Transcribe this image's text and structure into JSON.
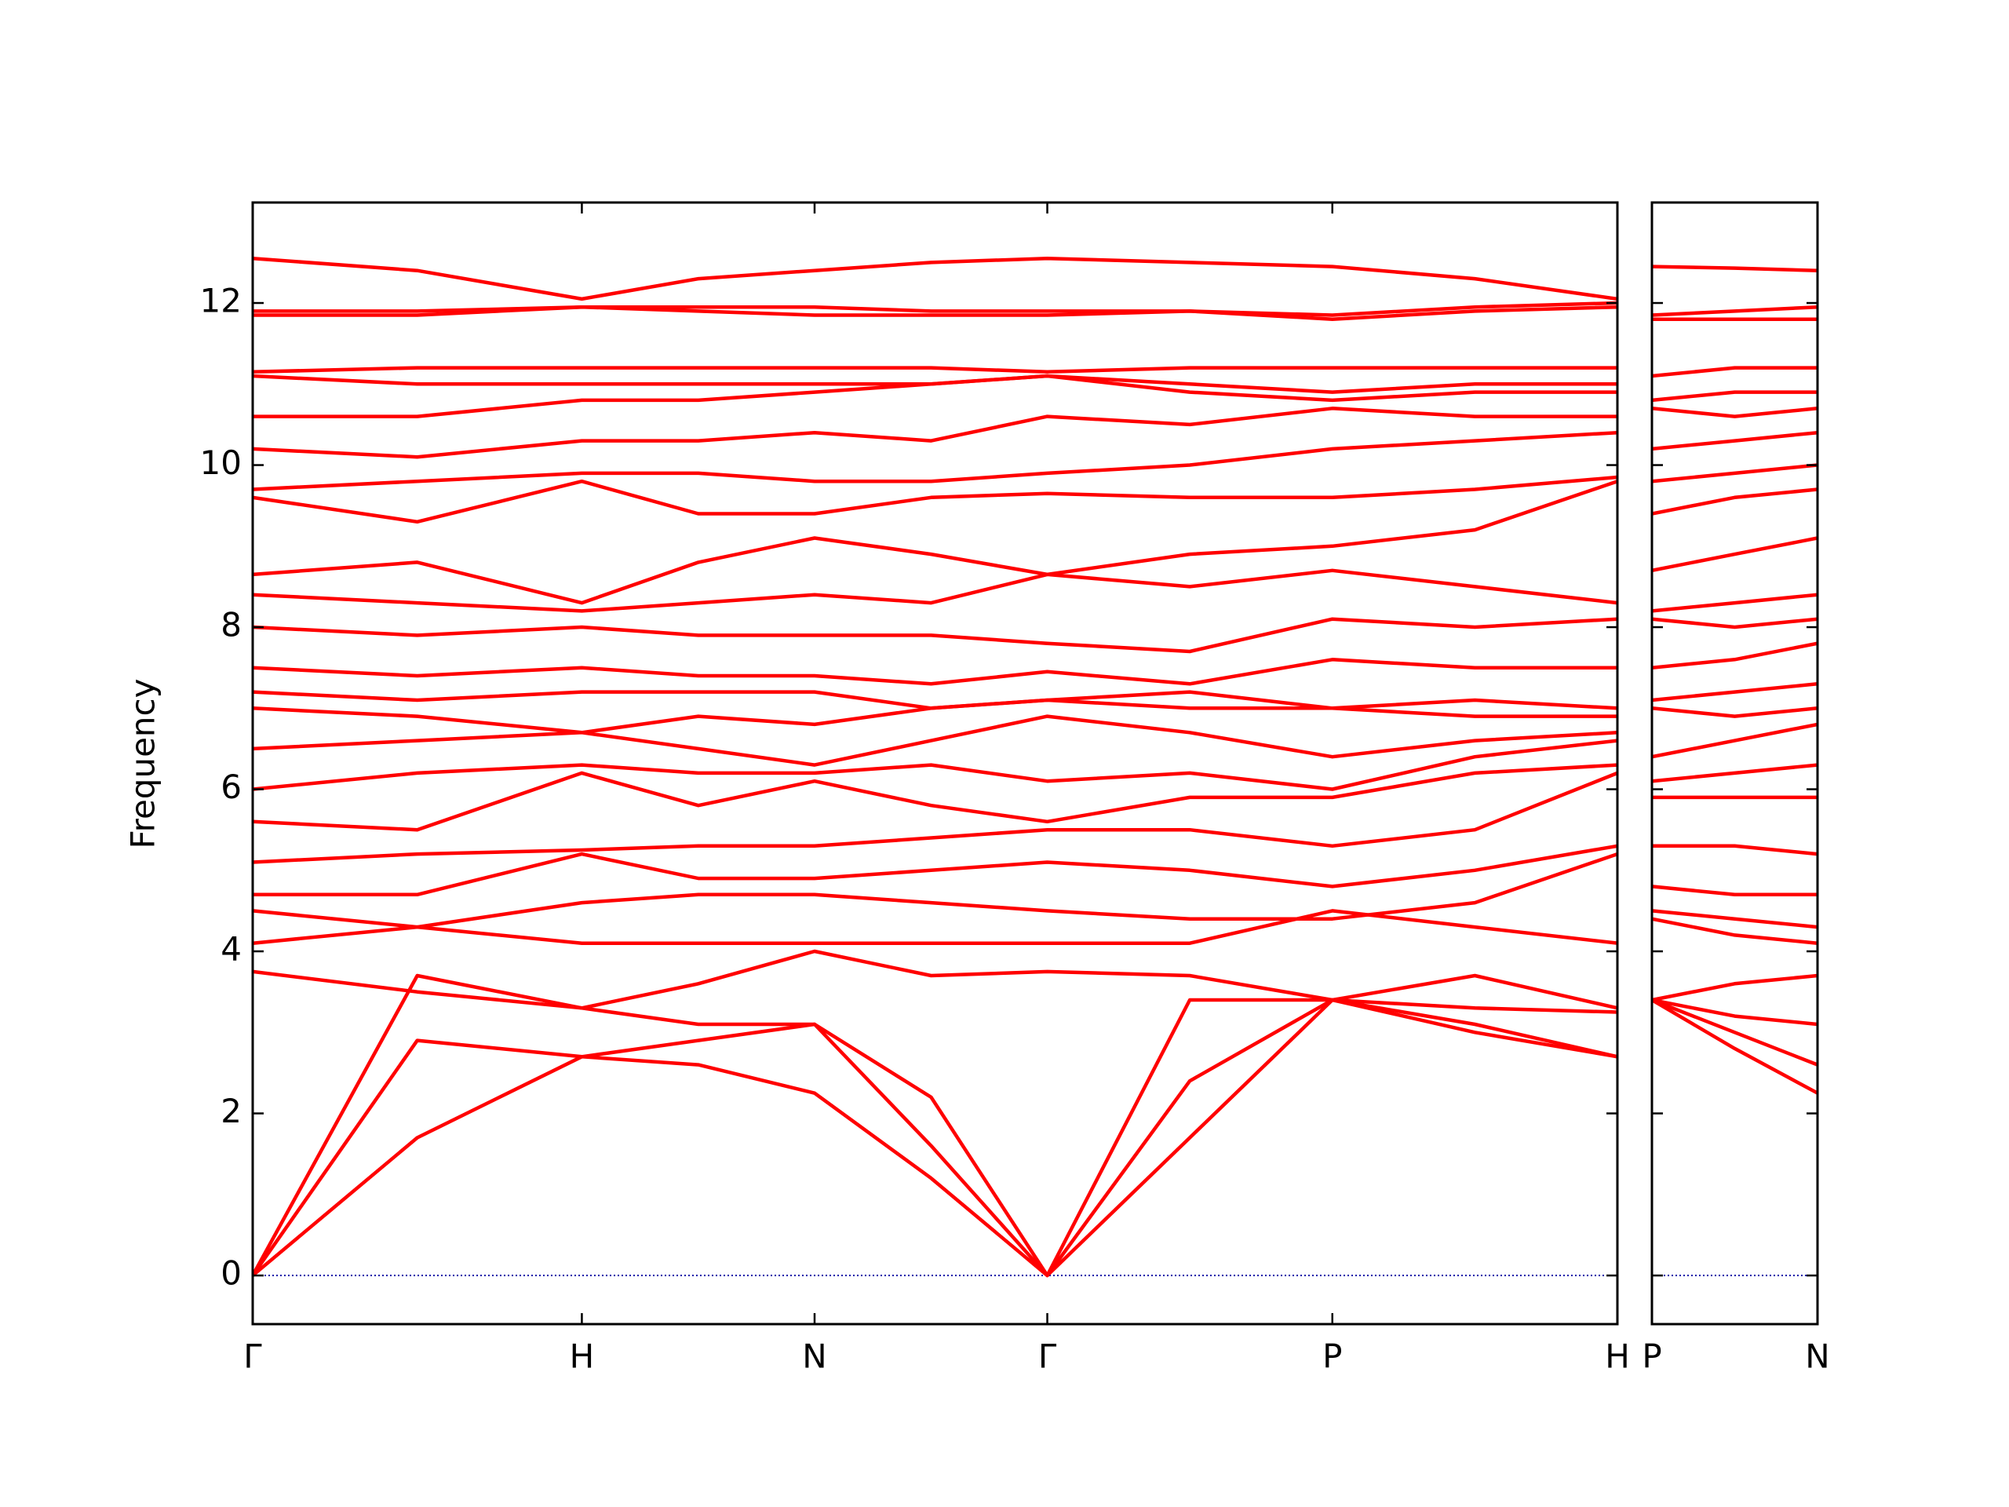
{
  "chart_data": [
    {
      "type": "line",
      "ylabel": "Frequency",
      "color": "#ff0000",
      "zero_line": {
        "y": 0,
        "color": "#0000aa",
        "style": "dotted"
      },
      "xlim": [
        0,
        4.146
      ],
      "ylim": [
        -0.6,
        13.24
      ],
      "xticks": [
        {
          "value": 0,
          "label": "Γ"
        },
        {
          "value": 1,
          "label": "H"
        },
        {
          "value": 1.707,
          "label": "N"
        },
        {
          "value": 2.414,
          "label": "Γ"
        },
        {
          "value": 3.28,
          "label": "P"
        },
        {
          "value": 4.146,
          "label": "H"
        }
      ],
      "yticks": [
        0,
        2,
        4,
        6,
        8,
        10,
        12
      ],
      "x": [
        0,
        0.5,
        1,
        1.354,
        1.707,
        2.061,
        2.414,
        2.847,
        3.28,
        3.713,
        4.146
      ],
      "series": [
        {
          "values": [
            0,
            1.7,
            2.7,
            2.6,
            2.25,
            1.2,
            0,
            1.7,
            3.4,
            3.0,
            2.7
          ]
        },
        {
          "values": [
            0,
            2.9,
            2.7,
            2.9,
            3.1,
            1.6,
            0,
            2.4,
            3.4,
            3.1,
            2.7
          ]
        },
        {
          "values": [
            0,
            3.7,
            3.3,
            3.1,
            3.1,
            2.2,
            0,
            3.4,
            3.4,
            3.7,
            3.3
          ]
        },
        {
          "values": [
            3.75,
            3.5,
            3.3,
            3.6,
            4.0,
            3.7,
            3.75,
            3.7,
            3.4,
            3.3,
            3.25
          ]
        },
        {
          "values": [
            4.1,
            4.3,
            4.1,
            4.1,
            4.1,
            4.1,
            4.1,
            4.1,
            4.5,
            4.3,
            4.1
          ]
        },
        {
          "values": [
            4.5,
            4.3,
            4.6,
            4.7,
            4.7,
            4.6,
            4.5,
            4.4,
            4.4,
            4.6,
            5.2
          ]
        },
        {
          "values": [
            4.7,
            4.7,
            5.2,
            4.9,
            4.9,
            5.0,
            5.1,
            5.0,
            4.8,
            5.0,
            5.3
          ]
        },
        {
          "values": [
            5.1,
            5.2,
            5.25,
            5.3,
            5.3,
            5.4,
            5.5,
            5.5,
            5.3,
            5.5,
            6.2
          ]
        },
        {
          "values": [
            5.6,
            5.5,
            6.2,
            5.8,
            6.1,
            5.8,
            5.6,
            5.9,
            5.9,
            6.2,
            6.3
          ]
        },
        {
          "values": [
            6.0,
            6.2,
            6.3,
            6.2,
            6.2,
            6.3,
            6.1,
            6.2,
            6.0,
            6.4,
            6.6
          ]
        },
        {
          "values": [
            6.5,
            6.6,
            6.7,
            6.5,
            6.3,
            6.6,
            6.9,
            6.7,
            6.4,
            6.6,
            6.7
          ]
        },
        {
          "values": [
            7.0,
            6.9,
            6.7,
            6.9,
            6.8,
            7.0,
            7.1,
            7.0,
            7.0,
            6.9,
            6.9
          ]
        },
        {
          "values": [
            7.2,
            7.1,
            7.2,
            7.2,
            7.2,
            7.0,
            7.1,
            7.2,
            7.0,
            7.1,
            7.0
          ]
        },
        {
          "values": [
            7.5,
            7.4,
            7.5,
            7.4,
            7.4,
            7.3,
            7.45,
            7.3,
            7.6,
            7.5,
            7.5
          ]
        },
        {
          "values": [
            8.0,
            7.9,
            8.0,
            7.9,
            7.9,
            7.9,
            7.8,
            7.7,
            8.1,
            8.0,
            8.1
          ]
        },
        {
          "values": [
            8.4,
            8.3,
            8.2,
            8.3,
            8.4,
            8.3,
            8.65,
            8.5,
            8.7,
            8.5,
            8.3
          ]
        },
        {
          "values": [
            8.65,
            8.8,
            8.3,
            8.8,
            9.1,
            8.9,
            8.65,
            8.9,
            9.0,
            9.2,
            9.8
          ]
        },
        {
          "values": [
            9.6,
            9.3,
            9.8,
            9.4,
            9.4,
            9.6,
            9.65,
            9.6,
            9.6,
            9.7,
            9.85
          ]
        },
        {
          "values": [
            9.7,
            9.8,
            9.9,
            9.9,
            9.8,
            9.8,
            9.9,
            10.0,
            10.2,
            10.3,
            10.4
          ]
        },
        {
          "values": [
            10.2,
            10.1,
            10.3,
            10.3,
            10.4,
            10.3,
            10.6,
            10.5,
            10.7,
            10.6,
            10.6
          ]
        },
        {
          "values": [
            10.6,
            10.6,
            10.8,
            10.8,
            10.9,
            11.0,
            11.1,
            10.9,
            10.8,
            10.9,
            10.9
          ]
        },
        {
          "values": [
            11.1,
            11.0,
            11.0,
            11.0,
            11.0,
            11.0,
            11.1,
            11.0,
            10.9,
            11.0,
            11.0
          ]
        },
        {
          "values": [
            11.15,
            11.2,
            11.2,
            11.2,
            11.2,
            11.2,
            11.15,
            11.2,
            11.2,
            11.2,
            11.2
          ]
        },
        {
          "values": [
            11.85,
            11.85,
            11.95,
            11.9,
            11.85,
            11.85,
            11.85,
            11.9,
            11.8,
            11.9,
            11.95
          ]
        },
        {
          "values": [
            11.9,
            11.9,
            11.95,
            11.95,
            11.95,
            11.9,
            11.9,
            11.9,
            11.85,
            11.95,
            12.0
          ]
        },
        {
          "values": [
            12.55,
            12.4,
            12.05,
            12.3,
            12.4,
            12.5,
            12.55,
            12.5,
            12.45,
            12.3,
            12.05
          ]
        }
      ]
    },
    {
      "type": "line",
      "color": "#ff0000",
      "show_ytick_labels": false,
      "zero_line": {
        "y": 0,
        "color": "#0000aa",
        "style": "dotted"
      },
      "xlim": [
        0,
        0.5
      ],
      "ylim": [
        -0.6,
        13.24
      ],
      "xticks": [
        {
          "value": 0,
          "label": "P"
        },
        {
          "value": 0.5,
          "label": "N"
        }
      ],
      "yticks": [
        0,
        2,
        4,
        6,
        8,
        10,
        12
      ],
      "x": [
        0,
        0.25,
        0.5
      ],
      "series": [
        {
          "values": [
            3.4,
            2.8,
            2.25
          ]
        },
        {
          "values": [
            3.4,
            3.0,
            2.6
          ]
        },
        {
          "values": [
            3.4,
            3.2,
            3.1
          ]
        },
        {
          "values": [
            3.4,
            3.6,
            3.7
          ]
        },
        {
          "values": [
            4.4,
            4.2,
            4.1
          ]
        },
        {
          "values": [
            4.5,
            4.4,
            4.3
          ]
        },
        {
          "values": [
            4.8,
            4.7,
            4.7
          ]
        },
        {
          "values": [
            5.3,
            5.3,
            5.2
          ]
        },
        {
          "values": [
            5.9,
            5.9,
            5.9
          ]
        },
        {
          "values": [
            6.1,
            6.2,
            6.3
          ]
        },
        {
          "values": [
            6.4,
            6.6,
            6.8
          ]
        },
        {
          "values": [
            7.0,
            6.9,
            7.0
          ]
        },
        {
          "values": [
            7.1,
            7.2,
            7.3
          ]
        },
        {
          "values": [
            7.5,
            7.6,
            7.8
          ]
        },
        {
          "values": [
            8.1,
            8.0,
            8.1
          ]
        },
        {
          "values": [
            8.2,
            8.3,
            8.4
          ]
        },
        {
          "values": [
            8.7,
            8.9,
            9.1
          ]
        },
        {
          "values": [
            9.4,
            9.6,
            9.7
          ]
        },
        {
          "values": [
            9.8,
            9.9,
            10.0
          ]
        },
        {
          "values": [
            10.2,
            10.3,
            10.4
          ]
        },
        {
          "values": [
            10.7,
            10.6,
            10.7
          ]
        },
        {
          "values": [
            10.8,
            10.9,
            10.9
          ]
        },
        {
          "values": [
            11.1,
            11.2,
            11.2
          ]
        },
        {
          "values": [
            11.8,
            11.8,
            11.8
          ]
        },
        {
          "values": [
            11.85,
            11.9,
            11.95
          ]
        },
        {
          "values": [
            12.45,
            12.43,
            12.4
          ]
        }
      ]
    }
  ]
}
